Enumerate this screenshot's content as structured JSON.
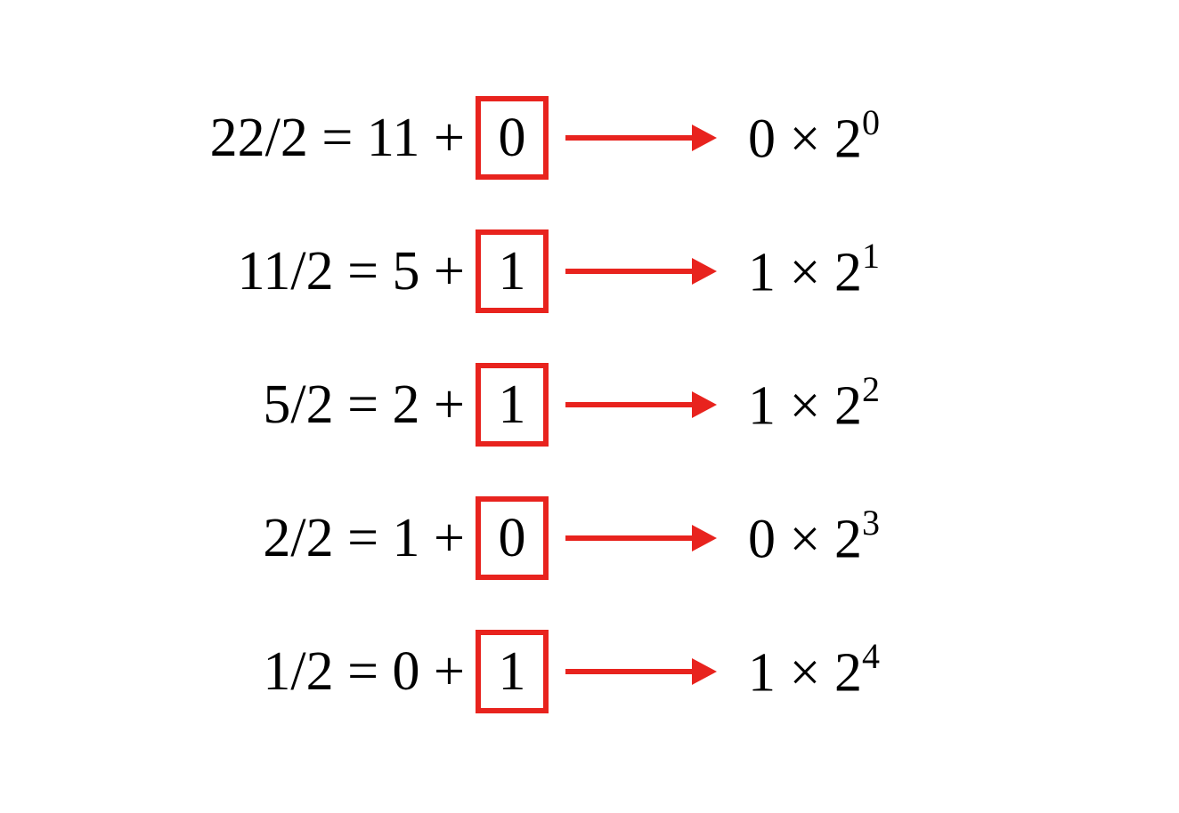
{
  "diagram": {
    "type": "flowchart",
    "background_color": "#ffffff",
    "text_color": "#000000",
    "highlight_color": "#e8231e",
    "box_border_width": 6,
    "arrow_width": 6,
    "font_family": "Times New Roman",
    "font_size_main": 62,
    "font_size_sup": 40,
    "rows": [
      {
        "dividend": "22",
        "divisor": "2",
        "quotient": "11",
        "remainder": "0",
        "result_coeff": "0",
        "result_base": "2",
        "result_exp": "0"
      },
      {
        "dividend": "11",
        "divisor": "2",
        "quotient": "5",
        "remainder": "1",
        "result_coeff": "1",
        "result_base": "2",
        "result_exp": "1"
      },
      {
        "dividend": "5",
        "divisor": "2",
        "quotient": "2",
        "remainder": "1",
        "result_coeff": "1",
        "result_base": "2",
        "result_exp": "2"
      },
      {
        "dividend": "2",
        "divisor": "2",
        "quotient": "1",
        "remainder": "0",
        "result_coeff": "0",
        "result_base": "2",
        "result_exp": "3"
      },
      {
        "dividend": "1",
        "divisor": "2",
        "quotient": "0",
        "remainder": "1",
        "result_coeff": "1",
        "result_base": "2",
        "result_exp": "4"
      }
    ]
  }
}
